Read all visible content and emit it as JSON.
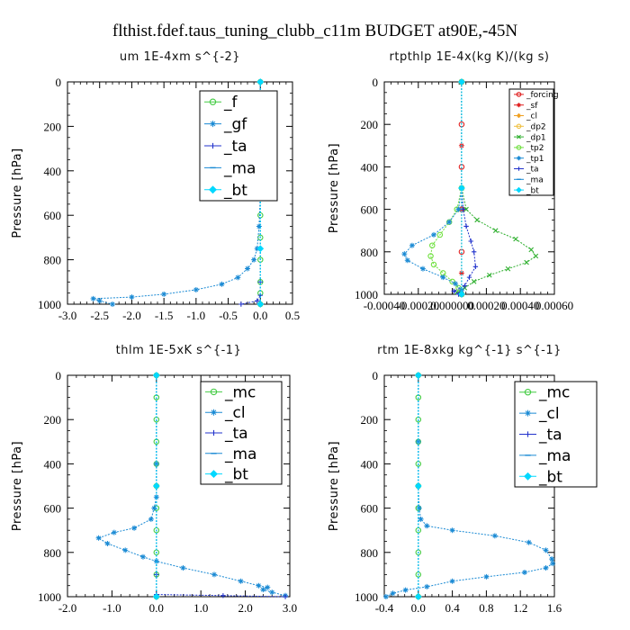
{
  "figure_title": "flthist.fdef.taus_tuning_clubb_c11m  BUDGET at90E,-45N",
  "colors": {
    "f": "#44cc44",
    "gf": "#1a8ad4",
    "ta": "#2233cc",
    "ma": "#1a8ad4",
    "bt": "#00d8ff",
    "forcing": "#e02020",
    "sf": "#e02020",
    "cl": "#f0a020",
    "dp2": "#f0c040",
    "dp1": "#30b030",
    "tp2": "#70e040",
    "tp1": "#1a8ad4",
    "mc": "#44cc44"
  },
  "chart_data": [
    {
      "type": "line",
      "title": "um   1E-4xm s^{-2}",
      "ylabel": "Pressure [hPa]",
      "xlim": [
        -3.0,
        0.5
      ],
      "ylim": [
        1000,
        0
      ],
      "y_reversed": true,
      "xticks": [
        "-3.0",
        "-2.5",
        "-2.0",
        "-1.5",
        "-1.0",
        "-0.5",
        "0.0",
        "0.5"
      ],
      "yticks": [
        "0",
        "200",
        "400",
        "600",
        "800",
        "1000"
      ],
      "legend": "top-right",
      "series": [
        {
          "name": "_f",
          "color": "#44cc44",
          "marker": "circle",
          "points": [
            [
              0.0,
              0
            ],
            [
              0.0,
              100
            ],
            [
              0.0,
              200
            ],
            [
              0.0,
              300
            ],
            [
              0.0,
              400
            ],
            [
              0.0,
              500
            ],
            [
              0.0,
              600
            ],
            [
              0.0,
              700
            ],
            [
              0.0,
              800
            ],
            [
              0.0,
              900
            ],
            [
              0.0,
              950
            ],
            [
              0.0,
              1000
            ]
          ]
        },
        {
          "name": "_gf",
          "color": "#1a8ad4",
          "marker": "star",
          "points": [
            [
              0.0,
              0
            ],
            [
              0.0,
              500
            ],
            [
              -0.02,
              650
            ],
            [
              -0.05,
              750
            ],
            [
              -0.1,
              800
            ],
            [
              -0.2,
              840
            ],
            [
              -0.35,
              880
            ],
            [
              -0.6,
              910
            ],
            [
              -1.0,
              935
            ],
            [
              -1.5,
              955
            ],
            [
              -2.0,
              968
            ],
            [
              -2.6,
              975
            ],
            [
              -2.5,
              985
            ],
            [
              -2.3,
              1000
            ]
          ]
        },
        {
          "name": "_ta",
          "color": "#2233cc",
          "marker": "plus",
          "points": [
            [
              0.0,
              0
            ],
            [
              0.0,
              500
            ],
            [
              0.0,
              900
            ],
            [
              0.0,
              960
            ],
            [
              -0.05,
              985
            ],
            [
              -0.3,
              1000
            ]
          ]
        },
        {
          "name": "_ma",
          "color": "#1a8ad4",
          "marker": "dash",
          "points": [
            [
              0.0,
              0
            ],
            [
              0.0,
              500
            ],
            [
              0.0,
              1000
            ]
          ]
        },
        {
          "name": "_bt",
          "color": "#00d8ff",
          "marker": "diamond",
          "points": [
            [
              0.0,
              0
            ],
            [
              0.0,
              250
            ],
            [
              0.0,
              500
            ],
            [
              0.0,
              750
            ],
            [
              0.0,
              1000
            ]
          ]
        }
      ]
    },
    {
      "type": "line",
      "title": "rtpthlp   1E-4x(kg K)/(kg s)",
      "ylabel": "Pressure [hPa]",
      "xlim": [
        -0.0005,
        0.0006
      ],
      "ylim": [
        1000,
        0
      ],
      "y_reversed": true,
      "xticks": [
        "-0.00040",
        "-0.00020",
        "0.000000",
        "0.00020",
        "0.00040",
        "0.00060"
      ],
      "yticks": [
        "0",
        "200",
        "400",
        "600",
        "800",
        "1000"
      ],
      "legend": "top-right",
      "series": [
        {
          "name": "_forcing",
          "color": "#e02020",
          "marker": "circle",
          "points": [
            [
              0.0,
              0
            ],
            [
              0.0,
              200
            ],
            [
              0.0,
              400
            ],
            [
              0.0,
              600
            ],
            [
              0.0,
              800
            ],
            [
              0.0,
              1000
            ]
          ]
        },
        {
          "name": "_sf",
          "color": "#e02020",
          "marker": "star",
          "points": [
            [
              0.0,
              0
            ],
            [
              0.0,
              300
            ],
            [
              0.0,
              600
            ],
            [
              0.0,
              900
            ],
            [
              0.0,
              1000
            ]
          ]
        },
        {
          "name": "_cl",
          "color": "#f0a020",
          "marker": "star",
          "points": [
            [
              0.0,
              0
            ],
            [
              0.0,
              500
            ],
            [
              0.0,
              1000
            ]
          ]
        },
        {
          "name": "_dp2",
          "color": "#f0c040",
          "marker": "circle",
          "points": [
            [
              0.0,
              0
            ],
            [
              0.0,
              500
            ],
            [
              0.0,
              1000
            ]
          ]
        },
        {
          "name": "_dp1",
          "color": "#30b030",
          "marker": "x",
          "points": [
            [
              0.0,
              0
            ],
            [
              0.0,
              500
            ],
            [
              3e-05,
              600
            ],
            [
              0.0001,
              650
            ],
            [
              0.00022,
              700
            ],
            [
              0.00035,
              740
            ],
            [
              0.00045,
              790
            ],
            [
              0.00048,
              820
            ],
            [
              0.00042,
              850
            ],
            [
              0.0003,
              880
            ],
            [
              0.00018,
              910
            ],
            [
              8e-05,
              940
            ],
            [
              2e-05,
              970
            ],
            [
              -3e-05,
              990
            ],
            [
              0.0,
              1000
            ]
          ]
        },
        {
          "name": "_tp2",
          "color": "#70e040",
          "marker": "circle",
          "points": [
            [
              0.0,
              0
            ],
            [
              0.0,
              500
            ],
            [
              -3e-05,
              600
            ],
            [
              -8e-05,
              660
            ],
            [
              -0.00014,
              720
            ],
            [
              -0.00019,
              770
            ],
            [
              -0.0002,
              820
            ],
            [
              -0.00018,
              860
            ],
            [
              -0.00012,
              900
            ],
            [
              -6e-05,
              940
            ],
            [
              -2e-05,
              970
            ],
            [
              0.0,
              1000
            ]
          ]
        },
        {
          "name": "_tp1",
          "color": "#1a8ad4",
          "marker": "star",
          "points": [
            [
              0.0,
              0
            ],
            [
              0.0,
              500
            ],
            [
              -2e-05,
              600
            ],
            [
              -8e-05,
              660
            ],
            [
              -0.00018,
              720
            ],
            [
              -0.00032,
              770
            ],
            [
              -0.00037,
              810
            ],
            [
              -0.00035,
              840
            ],
            [
              -0.00025,
              880
            ],
            [
              -0.00012,
              920
            ],
            [
              -4e-05,
              950
            ],
            [
              0.0,
              980
            ],
            [
              0.0,
              1000
            ]
          ]
        },
        {
          "name": "_ta",
          "color": "#2233cc",
          "marker": "plus",
          "points": [
            [
              0.0,
              0
            ],
            [
              0.0,
              500
            ],
            [
              1e-05,
              600
            ],
            [
              3e-05,
              680
            ],
            [
              6e-05,
              750
            ],
            [
              8e-05,
              800
            ],
            [
              9e-05,
              870
            ],
            [
              5e-05,
              920
            ],
            [
              2e-05,
              960
            ],
            [
              -5e-05,
              985
            ],
            [
              -2e-05,
              1000
            ]
          ]
        },
        {
          "name": "_ma",
          "color": "#1a8ad4",
          "marker": "dash",
          "points": [
            [
              0.0,
              0
            ],
            [
              0.0,
              1000
            ]
          ]
        },
        {
          "name": "_bt",
          "color": "#00d8ff",
          "marker": "diamond",
          "points": [
            [
              0.0,
              0
            ],
            [
              0.0,
              500
            ],
            [
              0.0,
              1000
            ]
          ]
        }
      ]
    },
    {
      "type": "line",
      "title": "thlm   1E-5xK s^{-1}",
      "ylabel": "Pressure [hPa]",
      "xlim": [
        -2.0,
        3.0
      ],
      "ylim": [
        1000,
        0
      ],
      "y_reversed": true,
      "xticks": [
        "-2.0",
        "-1.0",
        "0.0",
        "1.0",
        "2.0",
        "3.0"
      ],
      "yticks": [
        "0",
        "200",
        "400",
        "600",
        "800",
        "1000"
      ],
      "legend": "top-right",
      "series": [
        {
          "name": "_mc",
          "color": "#44cc44",
          "marker": "circle",
          "points": [
            [
              0.0,
              0
            ],
            [
              0.0,
              100
            ],
            [
              0.0,
              200
            ],
            [
              0.0,
              300
            ],
            [
              0.0,
              400
            ],
            [
              0.0,
              500
            ],
            [
              0.0,
              600
            ],
            [
              0.0,
              700
            ],
            [
              0.0,
              800
            ],
            [
              0.0,
              900
            ],
            [
              0.0,
              1000
            ]
          ]
        },
        {
          "name": "_cl",
          "color": "#1a8ad4",
          "marker": "star",
          "points": [
            [
              0.0,
              0
            ],
            [
              0.0,
              400
            ],
            [
              0.0,
              550
            ],
            [
              -0.05,
              600
            ],
            [
              -0.12,
              650
            ],
            [
              -0.5,
              690
            ],
            [
              -0.95,
              710
            ],
            [
              -1.3,
              735
            ],
            [
              -1.1,
              760
            ],
            [
              -0.7,
              790
            ],
            [
              -0.3,
              820
            ],
            [
              0.0,
              840
            ],
            [
              0.6,
              870
            ],
            [
              1.3,
              900
            ],
            [
              1.9,
              930
            ],
            [
              2.3,
              950
            ],
            [
              2.5,
              958
            ],
            [
              2.4,
              968
            ],
            [
              2.6,
              980
            ],
            [
              2.9,
              995
            ]
          ]
        },
        {
          "name": "_ta",
          "color": "#2233cc",
          "marker": "plus",
          "points": [
            [
              0.0,
              0
            ],
            [
              0.0,
              500
            ],
            [
              0.0,
              900
            ],
            [
              0.0,
              990
            ],
            [
              1.5,
              995
            ],
            [
              2.9,
              1000
            ]
          ]
        },
        {
          "name": "_ma",
          "color": "#1a8ad4",
          "marker": "dash",
          "points": [
            [
              0.0,
              0
            ],
            [
              0.0,
              1000
            ]
          ]
        },
        {
          "name": "_bt",
          "color": "#00d8ff",
          "marker": "diamond",
          "points": [
            [
              0.0,
              0
            ],
            [
              0.0,
              500
            ],
            [
              0.0,
              1000
            ]
          ]
        }
      ]
    },
    {
      "type": "line",
      "title": "rtm   1E-8xkg kg^{-1} s^{-1}",
      "ylabel": "Pressure [hPa]",
      "xlim": [
        -0.4,
        1.6
      ],
      "ylim": [
        1000,
        0
      ],
      "y_reversed": true,
      "xticks": [
        "-0.4",
        "0.0",
        "0.4",
        "0.8",
        "1.2",
        "1.6"
      ],
      "yticks": [
        "0",
        "200",
        "400",
        "600",
        "800",
        "1000"
      ],
      "legend": "top-right",
      "series": [
        {
          "name": "_mc",
          "color": "#44cc44",
          "marker": "circle",
          "points": [
            [
              0.0,
              0
            ],
            [
              0.0,
              100
            ],
            [
              0.0,
              200
            ],
            [
              0.0,
              300
            ],
            [
              0.0,
              400
            ],
            [
              0.0,
              500
            ],
            [
              0.0,
              600
            ],
            [
              0.0,
              700
            ],
            [
              0.0,
              800
            ],
            [
              0.0,
              900
            ],
            [
              0.0,
              1000
            ]
          ]
        },
        {
          "name": "_cl",
          "color": "#1a8ad4",
          "marker": "star",
          "points": [
            [
              0.0,
              0
            ],
            [
              0.0,
              300
            ],
            [
              0.0,
              500
            ],
            [
              0.01,
              600
            ],
            [
              0.03,
              650
            ],
            [
              0.1,
              680
            ],
            [
              0.4,
              700
            ],
            [
              0.9,
              725
            ],
            [
              1.3,
              755
            ],
            [
              1.5,
              790
            ],
            [
              1.57,
              830
            ],
            [
              1.58,
              850
            ],
            [
              1.5,
              870
            ],
            [
              1.25,
              890
            ],
            [
              0.8,
              910
            ],
            [
              0.4,
              930
            ],
            [
              0.1,
              955
            ],
            [
              -0.15,
              970
            ],
            [
              -0.3,
              985
            ],
            [
              -0.38,
              1000
            ]
          ]
        },
        {
          "name": "_ta",
          "color": "#2233cc",
          "marker": "plus",
          "points": [
            [
              0.0,
              0
            ],
            [
              0.0,
              500
            ],
            [
              0.0,
              1000
            ]
          ]
        },
        {
          "name": "_ma",
          "color": "#1a8ad4",
          "marker": "dash",
          "points": [
            [
              0.0,
              0
            ],
            [
              0.0,
              1000
            ]
          ]
        },
        {
          "name": "_bt",
          "color": "#00d8ff",
          "marker": "diamond",
          "points": [
            [
              0.0,
              0
            ],
            [
              0.0,
              500
            ],
            [
              0.0,
              1000
            ]
          ]
        }
      ]
    }
  ]
}
